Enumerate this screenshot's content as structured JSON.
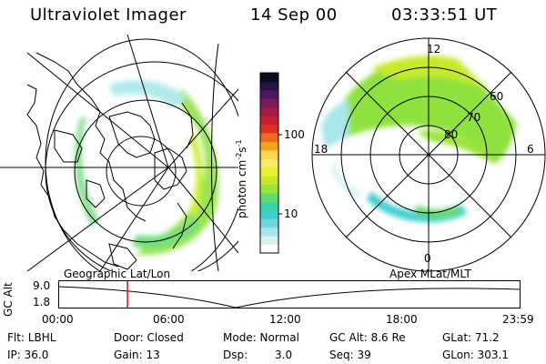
{
  "header": {
    "instrument": "Ultraviolet Imager",
    "date": "14 Sep 00",
    "time": "03:33:51 UT"
  },
  "colorbar": {
    "label": "photon cm",
    "label_sup1": "-2",
    "label_mid": "s",
    "label_sup2": "-1",
    "ticks": [
      {
        "label": "100",
        "value": 100
      },
      {
        "label": "10",
        "value": 10
      }
    ],
    "colors": [
      "#ffffff",
      "#d8f2f2",
      "#a8e6ea",
      "#6fd7df",
      "#3fcfd0",
      "#39d4a3",
      "#62dc6e",
      "#9be43a",
      "#c6ea2a",
      "#e9ef2b",
      "#f5ea6a",
      "#fbd54f",
      "#f7a21e",
      "#ef6a1b",
      "#e0301f",
      "#c81e32",
      "#a11b45",
      "#7a1a58",
      "#4e1762",
      "#271446",
      "#0b0b1f"
    ]
  },
  "geo_map": {
    "caption": "Geographic Lat/Lon"
  },
  "polar_map": {
    "caption": "Apex MLat/MLT",
    "mlt_labels": {
      "top": "12",
      "left": "18",
      "right": "6",
      "bottom": "0"
    },
    "lat_labels": [
      "60",
      "70",
      "80"
    ]
  },
  "altitude_plot": {
    "ylabel": "GC Alt",
    "yticks": [
      "9.0",
      "1.8"
    ],
    "xticks": [
      "00:00",
      "06:00",
      "12:00",
      "18:00",
      "23:59"
    ],
    "marker_time_hours": 3.56
  },
  "footer": {
    "filter": "Flt: LBHL",
    "door": "Door: Closed",
    "mode": "Mode: Normal",
    "gc_alt": "GC Alt: 8.6 Re",
    "glat": "GLat: 71.2",
    "ip": "IP: 36.0",
    "gain": "Gain: 13",
    "dsp_label": "Dsp:",
    "dsp_value": "3.0",
    "seq": "Seq: 39",
    "glon": "GLon: 303.1"
  }
}
